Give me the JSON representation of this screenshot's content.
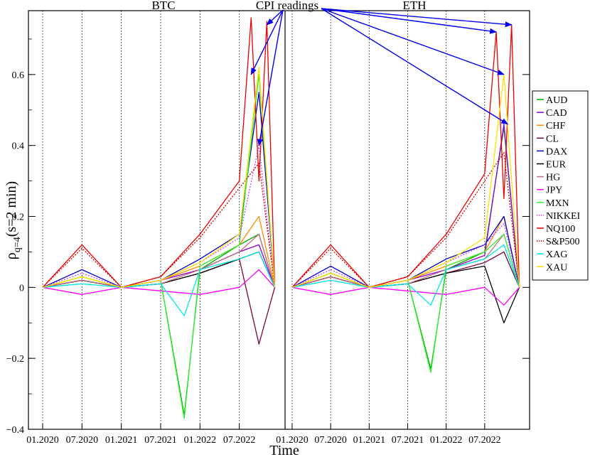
{
  "chart_data": {
    "type": "line",
    "xlabel": "Time",
    "ylabel_main": "ρ",
    "ylabel_sub": "q=4",
    "ylabel_rest": "(s=2 min)",
    "ylim": [
      -0.4,
      0.78
    ],
    "yticks": [
      -0.4,
      -0.2,
      0,
      0.2,
      0.4,
      0.6
    ],
    "ytick_labels": [
      "−0.4",
      "−0.2",
      "0",
      "0.2",
      "0.4",
      "0.6"
    ],
    "grid": "dotted vertical lines at every half-year",
    "legend_position": "right",
    "annotation": "CPI readings",
    "panels": [
      {
        "name": "BTC",
        "xtick_labels": [
          "01.2020",
          "07.2020",
          "01.2021",
          "07.2021",
          "01.2022",
          "07.2022"
        ]
      },
      {
        "name": "ETH",
        "xtick_labels": [
          "01.2020",
          "07.2020",
          "01.2021",
          "07.2021",
          "01.2022",
          "07.2022"
        ]
      }
    ],
    "series": [
      {
        "name": "AUD",
        "color": "#00aa00",
        "dash": false,
        "btc": [
          [
            2020.0,
            0.0
          ],
          [
            2020.5,
            0.02
          ],
          [
            2021.0,
            0.0
          ],
          [
            2021.5,
            0.02
          ],
          [
            2021.8,
            -0.36
          ],
          [
            2022.0,
            0.05
          ],
          [
            2022.5,
            0.12
          ],
          [
            2022.75,
            0.15
          ],
          [
            2022.95,
            0.0
          ]
        ],
        "eth": [
          [
            2020.0,
            0.0
          ],
          [
            2020.5,
            0.04
          ],
          [
            2021.0,
            0.0
          ],
          [
            2021.5,
            0.02
          ],
          [
            2021.8,
            -0.23
          ],
          [
            2022.0,
            0.05
          ],
          [
            2022.5,
            0.1
          ],
          [
            2022.75,
            0.45
          ],
          [
            2022.95,
            0.0
          ]
        ]
      },
      {
        "name": "CAD",
        "color": "#8c00d4",
        "dash": false,
        "btc": [
          [
            2020.0,
            0.0
          ],
          [
            2020.5,
            0.02
          ],
          [
            2021.0,
            0.0
          ],
          [
            2021.5,
            0.02
          ],
          [
            2022.0,
            0.05
          ],
          [
            2022.5,
            0.1
          ],
          [
            2022.75,
            0.12
          ],
          [
            2022.95,
            0.0
          ]
        ],
        "eth": [
          [
            2020.0,
            0.0
          ],
          [
            2020.5,
            0.03
          ],
          [
            2021.0,
            0.0
          ],
          [
            2021.5,
            0.02
          ],
          [
            2022.0,
            0.05
          ],
          [
            2022.5,
            0.09
          ],
          [
            2022.75,
            0.46
          ],
          [
            2022.95,
            0.0
          ]
        ]
      },
      {
        "name": "CHF",
        "color": "#ff8c00",
        "dash": false,
        "btc": [
          [
            2020.0,
            0.0
          ],
          [
            2020.5,
            0.03
          ],
          [
            2021.0,
            0.0
          ],
          [
            2021.5,
            0.02
          ],
          [
            2022.0,
            0.06
          ],
          [
            2022.5,
            0.12
          ],
          [
            2022.75,
            0.2
          ],
          [
            2022.95,
            0.0
          ]
        ],
        "eth": [
          [
            2020.0,
            0.0
          ],
          [
            2020.5,
            0.04
          ],
          [
            2021.0,
            0.0
          ],
          [
            2021.5,
            0.02
          ],
          [
            2022.0,
            0.06
          ],
          [
            2022.5,
            0.1
          ],
          [
            2022.75,
            0.2
          ],
          [
            2022.95,
            0.0
          ]
        ]
      },
      {
        "name": "CL",
        "color": "#800040",
        "dash": false,
        "btc": [
          [
            2020.0,
            0.0
          ],
          [
            2020.5,
            0.02
          ],
          [
            2021.0,
            0.0
          ],
          [
            2021.5,
            0.01
          ],
          [
            2022.0,
            0.04
          ],
          [
            2022.5,
            0.08
          ],
          [
            2022.75,
            -0.16
          ],
          [
            2022.95,
            0.0
          ]
        ],
        "eth": [
          [
            2020.0,
            0.0
          ],
          [
            2020.5,
            0.03
          ],
          [
            2021.0,
            0.0
          ],
          [
            2021.5,
            0.01
          ],
          [
            2022.0,
            0.04
          ],
          [
            2022.5,
            0.07
          ],
          [
            2022.75,
            0.1
          ],
          [
            2022.95,
            0.0
          ]
        ]
      },
      {
        "name": "DAX",
        "color": "#0000cc",
        "dash": false,
        "btc": [
          [
            2020.0,
            0.0
          ],
          [
            2020.5,
            0.05
          ],
          [
            2021.0,
            0.0
          ],
          [
            2021.5,
            0.02
          ],
          [
            2022.0,
            0.08
          ],
          [
            2022.5,
            0.15
          ],
          [
            2022.75,
            0.55
          ],
          [
            2022.95,
            0.0
          ]
        ],
        "eth": [
          [
            2020.0,
            0.0
          ],
          [
            2020.5,
            0.06
          ],
          [
            2021.0,
            0.0
          ],
          [
            2021.5,
            0.02
          ],
          [
            2022.0,
            0.08
          ],
          [
            2022.5,
            0.12
          ],
          [
            2022.75,
            0.2
          ],
          [
            2022.95,
            0.0
          ]
        ]
      },
      {
        "name": "EUR",
        "color": "#000000",
        "dash": false,
        "btc": [
          [
            2020.0,
            0.0
          ],
          [
            2020.5,
            0.02
          ],
          [
            2021.0,
            0.0
          ],
          [
            2021.5,
            0.01
          ],
          [
            2022.0,
            0.04
          ],
          [
            2022.5,
            0.08
          ],
          [
            2022.75,
            0.1
          ],
          [
            2022.95,
            0.0
          ]
        ],
        "eth": [
          [
            2020.0,
            0.0
          ],
          [
            2020.5,
            0.03
          ],
          [
            2021.0,
            0.0
          ],
          [
            2021.5,
            0.01
          ],
          [
            2022.0,
            0.04
          ],
          [
            2022.5,
            0.06
          ],
          [
            2022.75,
            -0.1
          ],
          [
            2022.95,
            0.0
          ]
        ]
      },
      {
        "name": "HG",
        "color": "#c07080",
        "dash": false,
        "btc": [
          [
            2020.0,
            0.0
          ],
          [
            2020.5,
            0.02
          ],
          [
            2021.0,
            0.0
          ],
          [
            2021.5,
            0.01
          ],
          [
            2022.0,
            0.05
          ],
          [
            2022.5,
            0.1
          ],
          [
            2022.75,
            0.15
          ],
          [
            2022.95,
            0.0
          ]
        ],
        "eth": [
          [
            2020.0,
            0.0
          ],
          [
            2020.5,
            0.03
          ],
          [
            2021.0,
            0.0
          ],
          [
            2021.5,
            0.01
          ],
          [
            2022.0,
            0.05
          ],
          [
            2022.5,
            0.08
          ],
          [
            2022.75,
            0.15
          ],
          [
            2022.95,
            0.0
          ]
        ]
      },
      {
        "name": "JPY",
        "color": "#ff00ff",
        "dash": false,
        "btc": [
          [
            2020.0,
            0.0
          ],
          [
            2020.5,
            -0.02
          ],
          [
            2021.0,
            0.0
          ],
          [
            2021.5,
            -0.01
          ],
          [
            2022.0,
            -0.02
          ],
          [
            2022.5,
            0.0
          ],
          [
            2022.75,
            0.05
          ],
          [
            2022.95,
            0.0
          ]
        ],
        "eth": [
          [
            2020.0,
            0.0
          ],
          [
            2020.5,
            -0.02
          ],
          [
            2021.0,
            0.0
          ],
          [
            2021.5,
            -0.01
          ],
          [
            2022.0,
            -0.02
          ],
          [
            2022.5,
            0.0
          ],
          [
            2022.75,
            -0.05
          ],
          [
            2022.95,
            0.0
          ]
        ]
      },
      {
        "name": "MXN",
        "color": "#33ee33",
        "dash": false,
        "btc": [
          [
            2020.0,
            0.0
          ],
          [
            2020.5,
            0.03
          ],
          [
            2021.0,
            0.0
          ],
          [
            2021.5,
            0.02
          ],
          [
            2021.8,
            -0.37
          ],
          [
            2022.0,
            0.06
          ],
          [
            2022.5,
            0.12
          ],
          [
            2022.75,
            0.6
          ],
          [
            2022.95,
            0.0
          ]
        ],
        "eth": [
          [
            2020.0,
            0.0
          ],
          [
            2020.5,
            0.04
          ],
          [
            2021.0,
            0.0
          ],
          [
            2021.5,
            0.02
          ],
          [
            2021.8,
            -0.24
          ],
          [
            2022.0,
            0.06
          ],
          [
            2022.5,
            0.1
          ],
          [
            2022.75,
            0.15
          ],
          [
            2022.95,
            0.0
          ]
        ]
      },
      {
        "name": "NIKKEI",
        "color": "#cc44ff",
        "dash": true,
        "btc": [
          [
            2020.0,
            0.0
          ],
          [
            2020.5,
            0.04
          ],
          [
            2021.0,
            0.0
          ],
          [
            2021.5,
            0.02
          ],
          [
            2022.0,
            0.07
          ],
          [
            2022.5,
            0.14
          ],
          [
            2022.75,
            0.4
          ],
          [
            2022.95,
            0.0
          ]
        ],
        "eth": [
          [
            2020.0,
            0.0
          ],
          [
            2020.5,
            0.05
          ],
          [
            2021.0,
            0.0
          ],
          [
            2021.5,
            0.02
          ],
          [
            2022.0,
            0.07
          ],
          [
            2022.5,
            0.12
          ],
          [
            2022.75,
            0.18
          ],
          [
            2022.95,
            0.0
          ]
        ]
      },
      {
        "name": "NQ100",
        "color": "#ee0000",
        "dash": false,
        "btc": [
          [
            2020.0,
            0.0
          ],
          [
            2020.5,
            0.12
          ],
          [
            2021.0,
            0.0
          ],
          [
            2021.5,
            0.03
          ],
          [
            2022.0,
            0.15
          ],
          [
            2022.5,
            0.3
          ],
          [
            2022.65,
            0.76
          ],
          [
            2022.75,
            0.3
          ],
          [
            2022.85,
            0.75
          ],
          [
            2022.95,
            0.0
          ]
        ],
        "eth": [
          [
            2020.0,
            0.0
          ],
          [
            2020.5,
            0.12
          ],
          [
            2021.0,
            0.0
          ],
          [
            2021.5,
            0.03
          ],
          [
            2022.0,
            0.15
          ],
          [
            2022.5,
            0.32
          ],
          [
            2022.65,
            0.72
          ],
          [
            2022.75,
            0.25
          ],
          [
            2022.85,
            0.74
          ],
          [
            2022.95,
            0.0
          ]
        ]
      },
      {
        "name": "S&P500",
        "color": "#cc0000",
        "dash": true,
        "btc": [
          [
            2020.0,
            0.0
          ],
          [
            2020.5,
            0.11
          ],
          [
            2021.0,
            0.0
          ],
          [
            2021.5,
            0.03
          ],
          [
            2022.0,
            0.14
          ],
          [
            2022.5,
            0.28
          ],
          [
            2022.75,
            0.35
          ],
          [
            2022.95,
            0.0
          ]
        ],
        "eth": [
          [
            2020.0,
            0.0
          ],
          [
            2020.5,
            0.11
          ],
          [
            2021.0,
            0.0
          ],
          [
            2021.5,
            0.03
          ],
          [
            2022.0,
            0.14
          ],
          [
            2022.5,
            0.3
          ],
          [
            2022.75,
            0.38
          ],
          [
            2022.95,
            0.0
          ]
        ]
      },
      {
        "name": "XAG",
        "color": "#00e5e5",
        "dash": false,
        "btc": [
          [
            2020.0,
            0.0
          ],
          [
            2020.5,
            0.01
          ],
          [
            2021.0,
            0.0
          ],
          [
            2021.5,
            0.01
          ],
          [
            2021.8,
            -0.08
          ],
          [
            2022.0,
            0.05
          ],
          [
            2022.5,
            0.08
          ],
          [
            2022.75,
            0.1
          ],
          [
            2022.95,
            0.0
          ]
        ],
        "eth": [
          [
            2020.0,
            0.0
          ],
          [
            2020.5,
            0.02
          ],
          [
            2021.0,
            0.0
          ],
          [
            2021.5,
            0.01
          ],
          [
            2021.8,
            -0.05
          ],
          [
            2022.0,
            0.05
          ],
          [
            2022.5,
            0.08
          ],
          [
            2022.75,
            0.12
          ],
          [
            2022.95,
            0.0
          ]
        ]
      },
      {
        "name": "XAU",
        "color": "#ffe000",
        "dash": false,
        "btc": [
          [
            2020.0,
            0.0
          ],
          [
            2020.5,
            0.03
          ],
          [
            2021.0,
            0.0
          ],
          [
            2021.5,
            0.02
          ],
          [
            2022.0,
            0.07
          ],
          [
            2022.5,
            0.15
          ],
          [
            2022.75,
            0.62
          ],
          [
            2022.95,
            0.0
          ]
        ],
        "eth": [
          [
            2020.0,
            0.0
          ],
          [
            2020.5,
            0.04
          ],
          [
            2021.0,
            0.0
          ],
          [
            2021.5,
            0.02
          ],
          [
            2022.0,
            0.07
          ],
          [
            2022.5,
            0.14
          ],
          [
            2022.75,
            0.6
          ],
          [
            2022.95,
            0.0
          ]
        ]
      }
    ]
  }
}
